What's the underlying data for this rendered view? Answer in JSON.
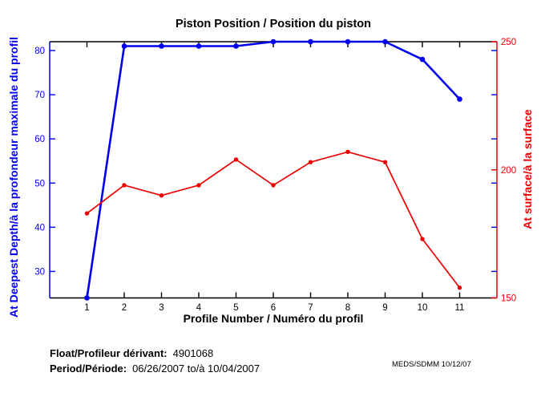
{
  "title": "Piston Position / Position du piston",
  "footer": {
    "float_label": "Float/Profileur dérivant:",
    "float_value": "4901068",
    "period_label": "Period/Période:",
    "period_value": "06/26/2007  to/à  10/04/2007",
    "credit": "MEDS/SDMM  10/12/07"
  },
  "chart_data": {
    "type": "line",
    "title": "Piston Position / Position du piston",
    "xlabel": "Profile Number / Numéro du profil",
    "x": [
      1,
      2,
      3,
      4,
      5,
      6,
      7,
      8,
      9,
      10,
      11
    ],
    "x_ticks": [
      1,
      2,
      3,
      4,
      5,
      6,
      7,
      8,
      9,
      10,
      11
    ],
    "x_range": [
      0,
      12
    ],
    "grid": false,
    "legend": "none",
    "left_axis": {
      "label": "At Deepest Depth/à la profondeur maximale du profil",
      "color": "#0000ee",
      "ticks": [
        30,
        40,
        50,
        60,
        70,
        80
      ],
      "range": [
        24,
        82
      ]
    },
    "right_axis": {
      "label": "At surface/à la surface",
      "color": "#ee0000",
      "ticks": [
        150,
        200,
        250
      ],
      "range": [
        150,
        250
      ]
    },
    "series": [
      {
        "name": "At Deepest Depth/à la profondeur maximale du profil",
        "axis": "left",
        "color": "#0000ee",
        "marker": "dot",
        "values": [
          24,
          81,
          81,
          81,
          81,
          82,
          82,
          82,
          82,
          78,
          69
        ]
      },
      {
        "name": "At surface/à la surface",
        "axis": "right",
        "color": "#ee0000",
        "marker": "dot",
        "values": [
          183,
          194,
          190,
          194,
          204,
          194,
          203,
          207,
          203,
          173,
          154
        ]
      }
    ]
  }
}
